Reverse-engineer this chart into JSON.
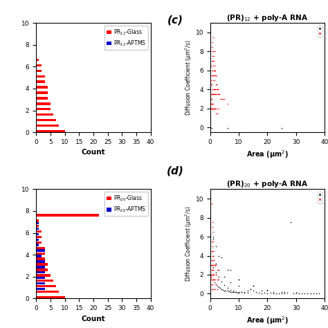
{
  "hist_c": {
    "red_counts": [
      10,
      8,
      7,
      6,
      5,
      5,
      4,
      4,
      4,
      3,
      3,
      2,
      2,
      1,
      0,
      0,
      0,
      0,
      0,
      0
    ],
    "blue_counts": [
      0,
      0,
      0,
      0,
      0,
      0,
      0,
      0,
      0,
      0,
      0,
      0,
      0,
      0,
      0,
      0,
      0,
      0,
      0,
      0
    ],
    "blue_special_x": 27,
    "blue_special_y": 0.0,
    "xlim": [
      0,
      40
    ],
    "ylim": [
      0,
      10
    ],
    "xlabel": "Count",
    "legend1": "PR$_{12}$-Glass",
    "legend2": "PR$_{12}$-APTMS"
  },
  "hist_d": {
    "red_counts": [
      10,
      8,
      7,
      6,
      5,
      4,
      4,
      3,
      3,
      3,
      2,
      2,
      2,
      1,
      1,
      22,
      0,
      0,
      0,
      0
    ],
    "blue_counts": [
      0,
      0,
      3,
      3,
      3,
      3,
      3,
      3,
      2,
      3,
      1,
      1,
      1,
      1,
      1,
      0,
      0,
      0,
      0,
      0
    ],
    "blue_special_x": 27,
    "blue_special_y": 0.0,
    "xlim": [
      0,
      40
    ],
    "ylim": [
      0,
      10
    ],
    "xlabel": "Count",
    "legend1": "PR$_{20}$-Glass",
    "legend2": "PR$_{20}$-APTMS"
  },
  "scatter_c": {
    "title": "(PR)$_{12}$ + poly-A RNA",
    "red_x": [
      0.2,
      0.3,
      0.3,
      0.4,
      0.4,
      0.5,
      0.5,
      0.5,
      0.6,
      0.6,
      0.6,
      0.7,
      0.7,
      0.7,
      0.8,
      0.8,
      0.8,
      0.9,
      0.9,
      0.9,
      1.0,
      1.0,
      1.0,
      1.0,
      1.0,
      1.1,
      1.1,
      1.1,
      1.2,
      1.2,
      1.2,
      1.3,
      1.3,
      1.3,
      1.4,
      1.4,
      1.5,
      1.5,
      1.5,
      1.5,
      1.6,
      1.6,
      1.7,
      1.7,
      1.8,
      1.8,
      1.9,
      1.9,
      2.0,
      2.0,
      2.1,
      2.2,
      2.3,
      2.4,
      2.5,
      2.6,
      2.7,
      2.8,
      3.0,
      3.2,
      3.5,
      4.0,
      4.5,
      5.0,
      6.0,
      0.3,
      0.4,
      0.5,
      0.6,
      0.7,
      0.8,
      0.9,
      1.0,
      1.1,
      1.2,
      1.4,
      1.6,
      1.8,
      2.0,
      2.2,
      2.5,
      3.0
    ],
    "red_y": [
      3.5,
      4.5,
      6.5,
      3.0,
      5.0,
      2.5,
      4.5,
      7.0,
      3.5,
      5.5,
      8.5,
      4.0,
      6.0,
      9.0,
      3.5,
      5.5,
      7.5,
      4.0,
      6.0,
      8.0,
      3.5,
      5.0,
      6.5,
      8.0,
      9.5,
      3.5,
      5.5,
      7.0,
      4.0,
      6.0,
      7.5,
      3.5,
      5.5,
      7.0,
      4.0,
      6.0,
      3.5,
      5.0,
      6.5,
      8.0,
      4.0,
      6.0,
      3.5,
      5.5,
      4.0,
      6.0,
      3.5,
      5.5,
      3.5,
      5.5,
      4.5,
      4.0,
      4.5,
      4.0,
      3.5,
      4.0,
      3.5,
      4.0,
      3.5,
      3.5,
      3.0,
      3.0,
      3.0,
      3.0,
      2.5,
      2.0,
      2.5,
      3.0,
      2.0,
      2.5,
      2.0,
      2.0,
      2.0,
      2.5,
      2.0,
      2.0,
      2.0,
      2.0,
      1.5,
      2.0,
      1.5,
      2.0
    ],
    "black_x": [
      0.5,
      6.0,
      25.0
    ],
    "black_y": [
      -0.05,
      -0.05,
      -0.05
    ],
    "xlim": [
      0,
      40
    ],
    "ylim": [
      -0.5,
      11
    ],
    "xlabel": "Area (μm$^2$)",
    "ylabel": "Diffusion Coefficient (μm$^2$/s)"
  },
  "scatter_d": {
    "title": "(PR)$_{20}$ + poly-A RNA",
    "red_x": [
      0.2,
      0.3,
      0.4,
      0.5,
      0.5,
      0.6,
      0.6,
      0.7,
      0.7,
      0.8,
      0.8,
      0.9,
      0.9,
      1.0,
      1.0,
      1.0,
      1.1,
      1.1,
      1.2,
      1.3,
      1.4,
      1.5,
      1.6,
      1.8,
      2.0,
      2.5,
      3.0,
      0.3,
      0.5,
      0.7,
      0.9,
      1.2,
      1.5,
      2.0,
      0.4,
      0.6,
      0.8,
      1.0,
      1.4,
      2.5,
      0.5,
      0.7,
      0.9,
      1.1,
      0.5,
      0.8,
      1.0,
      1.5,
      2.0,
      0.5,
      0.7,
      1.0,
      1.5,
      2.0,
      2.5,
      3.0,
      0.5,
      0.8,
      1.2,
      1.8,
      2.5
    ],
    "red_y": [
      1.8,
      3.0,
      2.0,
      3.5,
      5.5,
      3.0,
      4.5,
      2.5,
      4.0,
      3.5,
      5.0,
      3.0,
      4.5,
      2.5,
      4.0,
      5.5,
      3.0,
      4.5,
      3.5,
      3.5,
      3.0,
      3.0,
      3.0,
      3.0,
      3.0,
      2.5,
      2.5,
      1.5,
      2.5,
      2.0,
      2.5,
      2.0,
      1.5,
      2.0,
      1.5,
      2.0,
      1.5,
      2.0,
      1.5,
      1.5,
      9.5,
      7.5,
      7.0,
      6.5,
      1.0,
      1.0,
      1.5,
      1.5,
      1.0,
      2.0,
      2.5,
      2.0,
      1.5,
      2.0,
      1.5,
      1.5,
      0.5,
      0.5,
      0.5,
      0.5,
      0.5
    ],
    "black_x": [
      1.0,
      1.5,
      2.0,
      2.5,
      3.0,
      3.5,
      4.0,
      4.5,
      5.0,
      5.5,
      6.0,
      6.5,
      7.0,
      7.5,
      8.0,
      8.5,
      9.0,
      9.5,
      10.0,
      11.0,
      12.0,
      13.0,
      14.0,
      15.0,
      16.0,
      17.0,
      18.0,
      19.0,
      20.0,
      21.0,
      22.0,
      23.0,
      24.0,
      25.0,
      26.0,
      27.0,
      28.0,
      29.0,
      30.0,
      31.0,
      32.0,
      33.0,
      34.0,
      35.0,
      36.0,
      37.0,
      38.0,
      1.0,
      2.0,
      3.0,
      4.0,
      5.0,
      6.0,
      7.0,
      8.0,
      9.0,
      10.0,
      11.0,
      12.0,
      13.0,
      1.0,
      2.0,
      3.0,
      5.0,
      7.0,
      10.0,
      14.0,
      18.0,
      22.0,
      26.0,
      30.0,
      1.0,
      2.0,
      4.0,
      7.0,
      10.0,
      15.0,
      20.0,
      25.0,
      30.0,
      1.0,
      3.0,
      6.0,
      10.0,
      15.0,
      20.0
    ],
    "black_y": [
      1.5,
      1.2,
      1.0,
      0.8,
      0.7,
      0.6,
      0.5,
      0.4,
      0.35,
      0.3,
      0.3,
      0.25,
      0.2,
      0.2,
      0.2,
      0.15,
      0.15,
      0.1,
      0.1,
      0.15,
      0.2,
      0.3,
      0.5,
      0.3,
      0.2,
      0.1,
      0.05,
      0.1,
      0.05,
      0.1,
      0.05,
      0.05,
      0.05,
      0.05,
      0.05,
      0.1,
      7.5,
      0.05,
      0.1,
      0.05,
      0.05,
      0.05,
      0.05,
      0.05,
      0.05,
      0.05,
      0.05,
      2.8,
      2.2,
      1.8,
      1.3,
      0.9,
      0.6,
      0.4,
      0.3,
      0.2,
      0.2,
      0.15,
      0.1,
      0.1,
      4.0,
      3.2,
      2.5,
      1.8,
      1.2,
      0.8,
      0.5,
      0.3,
      0.2,
      0.15,
      0.1,
      6.0,
      5.0,
      3.8,
      2.5,
      1.5,
      0.8,
      0.4,
      0.2,
      0.1,
      5.8,
      4.0,
      2.5,
      1.5,
      0.8,
      0.3
    ],
    "xlim": [
      0,
      40
    ],
    "ylim": [
      -0.5,
      11
    ],
    "xlabel": "Area (μm$^2$)",
    "ylabel": "Diffusion Coefficient (μm$^2$/s)"
  },
  "red_color": "#FF0000",
  "blue_color": "#0000CD",
  "black_color": "#000000",
  "fig_bg": "#FFFFFF"
}
